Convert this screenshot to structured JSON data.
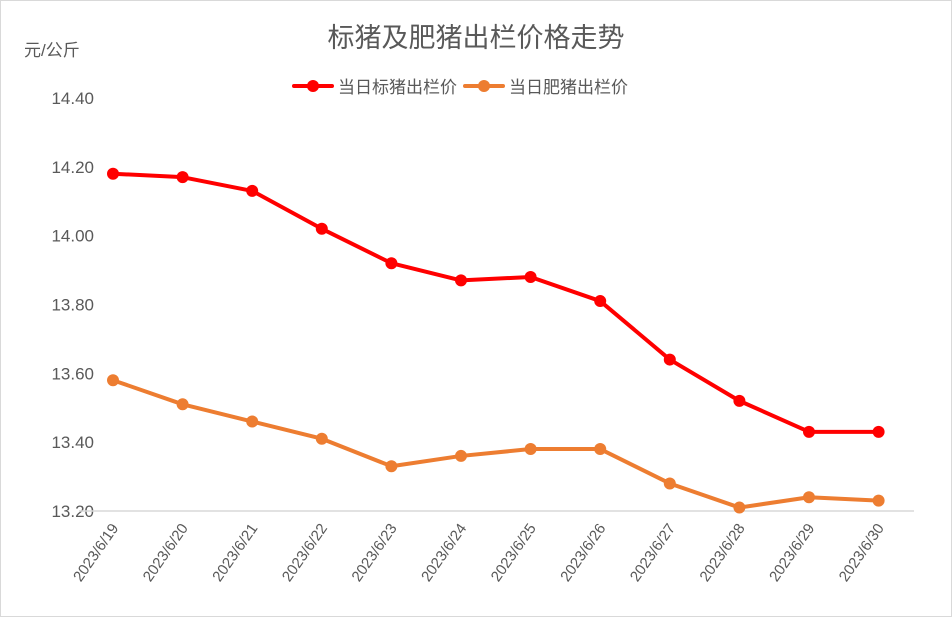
{
  "chart_data": {
    "type": "line",
    "title": "标猪及肥猪出栏价格走势",
    "ylabel": "元/公斤",
    "xlabel": "",
    "ylim": [
      13.2,
      14.4
    ],
    "yticks": [
      "14.40",
      "14.20",
      "14.00",
      "13.80",
      "13.60",
      "13.40",
      "13.20"
    ],
    "grid": false,
    "legend_position": "top",
    "categories": [
      "2023/6/19",
      "2023/6/20",
      "2023/6/21",
      "2023/6/22",
      "2023/6/23",
      "2023/6/24",
      "2023/6/25",
      "2023/6/26",
      "2023/6/27",
      "2023/6/28",
      "2023/6/29",
      "2023/6/30"
    ],
    "series": [
      {
        "name": "当日标猪出栏价",
        "color": "#ff0000",
        "values": [
          14.18,
          14.17,
          14.13,
          14.02,
          13.92,
          13.87,
          13.88,
          13.81,
          13.64,
          13.52,
          13.43,
          13.43
        ]
      },
      {
        "name": "当日肥猪出栏价",
        "color": "#ed7d31",
        "values": [
          13.58,
          13.51,
          13.46,
          13.41,
          13.33,
          13.36,
          13.38,
          13.38,
          13.28,
          13.21,
          13.24,
          13.23
        ]
      }
    ]
  }
}
